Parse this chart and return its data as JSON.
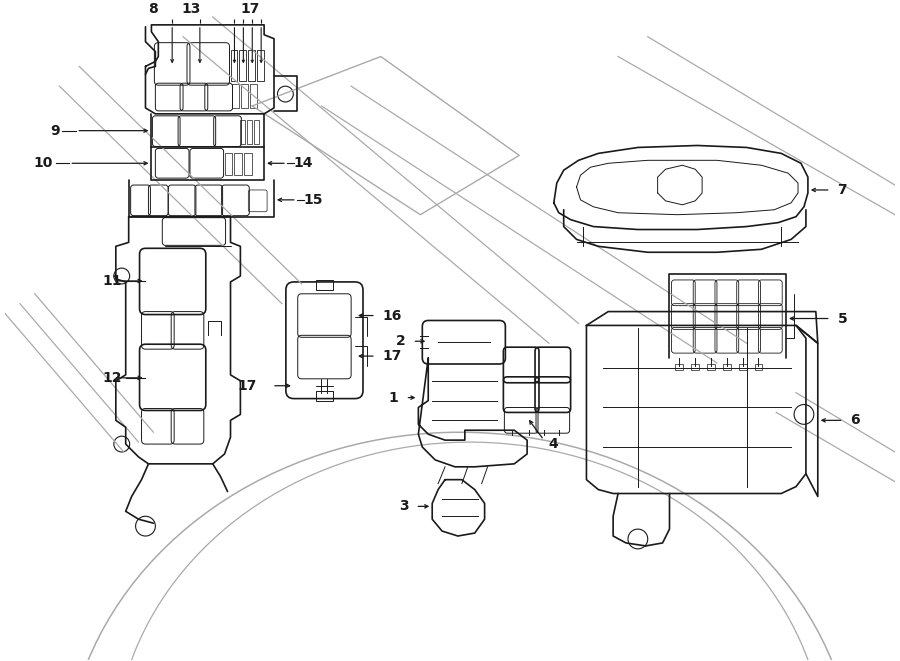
{
  "bg_color": "#ffffff",
  "line_color": "#1a1a1a",
  "fig_width": 9.0,
  "fig_height": 6.61,
  "dpi": 100,
  "label_fs": 10,
  "arrow_color": "#1a1a1a",
  "component_lw": 1.2,
  "detail_lw": 0.7,
  "bg_line_color": "#aaaaaa",
  "bg_line_lw": 0.9
}
